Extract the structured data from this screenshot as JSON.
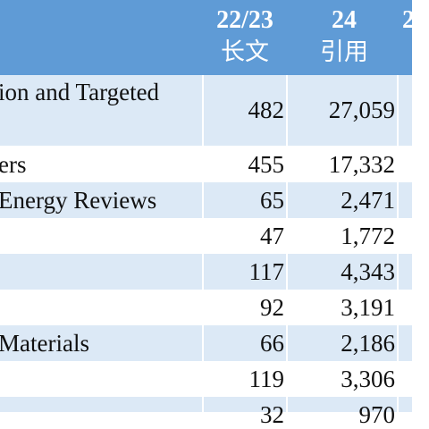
{
  "header": {
    "col1_line1": "22/23",
    "col1_line2": "长文",
    "col2_line1": "24",
    "col2_line2": "引用",
    "col3_line1": "2"
  },
  "rows": [
    {
      "name": "ion and Targeted",
      "long_articles": "482",
      "citations": "27,059"
    },
    {
      "name": "ers",
      "long_articles": "455",
      "citations": "17,332"
    },
    {
      "name": "Energy Reviews",
      "long_articles": "65",
      "citations": "2,471"
    },
    {
      "name": "",
      "long_articles": "47",
      "citations": "1,772"
    },
    {
      "name": "",
      "long_articles": "117",
      "citations": "4,343"
    },
    {
      "name": "",
      "long_articles": "92",
      "citations": "3,191"
    },
    {
      "name": "Materials",
      "long_articles": "66",
      "citations": "2,186"
    },
    {
      "name": "",
      "long_articles": "119",
      "citations": "3,306"
    },
    {
      "name": "",
      "long_articles": "32",
      "citations": "970"
    }
  ],
  "colors": {
    "header_bg": "#5f9bd6",
    "row_shade": "#dce9f6"
  }
}
